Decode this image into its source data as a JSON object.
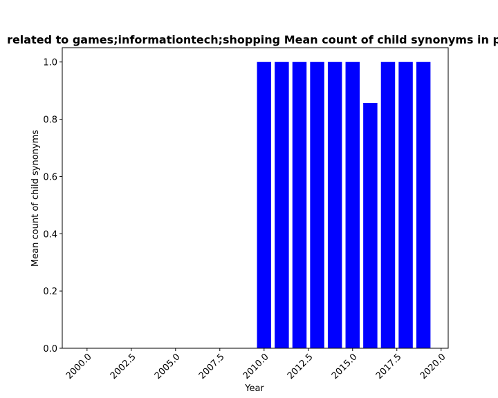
{
  "chart_data": {
    "type": "bar",
    "title": "related to games;informationtech;shopping Mean count of child synonyms in p",
    "xlabel": "Year",
    "ylabel": "Mean count of child synonyms",
    "x": [
      2010,
      2011,
      2012,
      2013,
      2014,
      2015,
      2016,
      2017,
      2018,
      2019
    ],
    "values": [
      1.0,
      1.0,
      1.0,
      1.0,
      1.0,
      1.0,
      0.857,
      1.0,
      1.0,
      1.0
    ],
    "xlim": [
      1998.6,
      2020.4
    ],
    "ylim": [
      0,
      1.05
    ],
    "xticks": [
      2000,
      2002.5,
      2005,
      2007.5,
      2010,
      2012.5,
      2015,
      2017.5,
      2020
    ],
    "xtick_labels": [
      "2000.0",
      "2002.5",
      "2005.0",
      "2007.5",
      "2010.0",
      "2012.5",
      "2015.0",
      "2017.5",
      "2020.0"
    ],
    "yticks": [
      0,
      0.2,
      0.4,
      0.6,
      0.8,
      1.0
    ],
    "ytick_labels": [
      "0.0",
      "0.2",
      "0.4",
      "0.6",
      "0.8",
      "1.0"
    ],
    "bar_color": "#0000ff",
    "grid": false
  }
}
